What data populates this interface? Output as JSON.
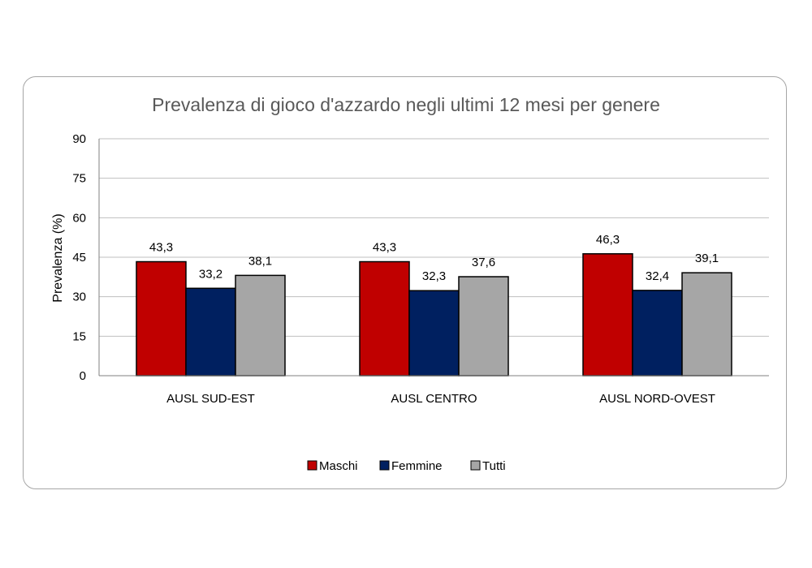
{
  "chart_data": {
    "type": "bar",
    "title": "Prevalenza di gioco d'azzardo negli ultimi 12 mesi per genere",
    "xlabel": "",
    "ylabel": "Prevalenza (%)",
    "ylim": [
      0,
      90
    ],
    "yticks": [
      0,
      15,
      30,
      45,
      60,
      75,
      90
    ],
    "categories": [
      "AUSL SUD-EST",
      "AUSL CENTRO",
      "AUSL NORD-OVEST"
    ],
    "series": [
      {
        "name": "Maschi",
        "color": "#c00000",
        "values": [
          43.3,
          43.3,
          46.3
        ],
        "labels": [
          "43,3",
          "43,3",
          "46,3"
        ]
      },
      {
        "name": "Femmine",
        "color": "#002060",
        "values": [
          33.2,
          32.3,
          32.4
        ],
        "labels": [
          "33,2",
          "32,3",
          "32,4"
        ]
      },
      {
        "name": "Tutti",
        "color": "#a6a6a6",
        "values": [
          38.1,
          37.6,
          39.1
        ],
        "labels": [
          "38,1",
          "37,6",
          "39,1"
        ]
      }
    ],
    "grid": true,
    "legend_position": "bottom"
  }
}
